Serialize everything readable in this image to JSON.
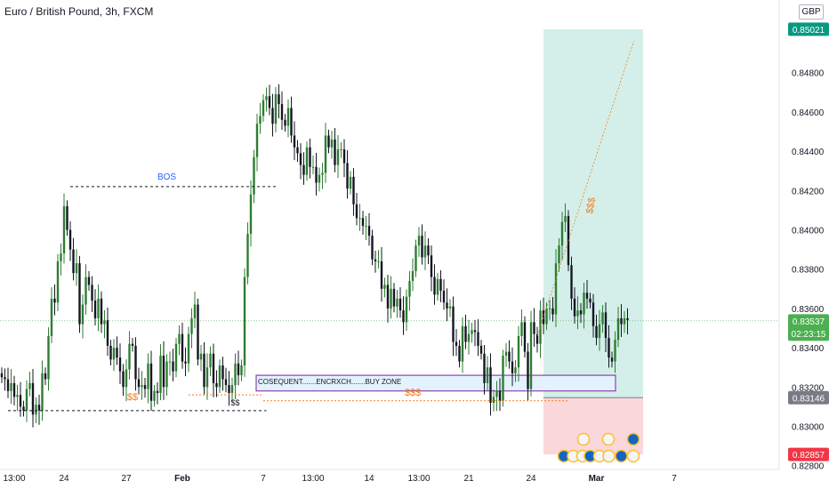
{
  "header": {
    "title": "Euro / British Pound, 3h, FXCM",
    "currency": "GBP"
  },
  "colors": {
    "up": "#26a69a",
    "up_body": "#2e7d32",
    "down": "#131722",
    "target_zone": "#d4efe9",
    "stop_zone": "#f9d7da",
    "target_label": "#089981",
    "stop_label": "#f23645",
    "entry_label": "#787b86",
    "current_label": "#4caf50",
    "annotation_orange": "#f57f17",
    "annotation_blue": "#2962ff",
    "buy_zone_border": "#7b1fa2"
  },
  "chart_data": {
    "type": "candlestick",
    "instrument": "Euro / British Pound",
    "timeframe": "3h",
    "ylim": [
      0.8274,
      0.8512
    ],
    "y_ticks": [
      0.828,
      0.83,
      0.832,
      0.834,
      0.836,
      0.838,
      0.84,
      0.842,
      0.844,
      0.846,
      0.848
    ],
    "x_ticks": [
      {
        "label": "13:00",
        "i": 4
      },
      {
        "label": "24",
        "i": 20
      },
      {
        "label": "27",
        "i": 40
      },
      {
        "label": "Feb",
        "i": 58
      },
      {
        "label": "7",
        "i": 84
      },
      {
        "label": "13:00",
        "i": 100
      },
      {
        "label": "14",
        "i": 118
      },
      {
        "label": "13:00",
        "i": 134
      },
      {
        "label": "21",
        "i": 150
      },
      {
        "label": "24",
        "i": 170
      },
      {
        "label": "Mar",
        "i": 191
      },
      {
        "label": "7",
        "i": 216
      }
    ],
    "price_labels": {
      "target": "0.85021",
      "current": "0.83537",
      "countdown": "02:23:15",
      "entry": "0.83146",
      "stop": "0.82857"
    },
    "position": {
      "entry": 0.83146,
      "target": 0.85021,
      "stop": 0.82857,
      "start_i": 174,
      "end_i": 206
    },
    "annotations": {
      "bos": "BOS",
      "ss_left": "$$",
      "ss_mid": "$$",
      "sss_bottom": "$$$",
      "sss_right": "$$$",
      "buy_zone": "COSEQUENT.......ENCRXCH.......BUY ZONE"
    },
    "close_series": [
      0.8325,
      0.8324,
      0.8318,
      0.8322,
      0.8315,
      0.8316,
      0.831,
      0.8308,
      0.8319,
      0.8322,
      0.8306,
      0.8311,
      0.8308,
      0.8327,
      0.8324,
      0.8346,
      0.8365,
      0.8363,
      0.8384,
      0.8388,
      0.8412,
      0.84,
      0.839,
      0.8378,
      0.8383,
      0.8352,
      0.8362,
      0.8376,
      0.8372,
      0.8364,
      0.8355,
      0.8365,
      0.8352,
      0.8354,
      0.8341,
      0.8334,
      0.834,
      0.8335,
      0.8328,
      0.832,
      0.8329,
      0.8342,
      0.8341,
      0.8324,
      0.832,
      0.8321,
      0.8319,
      0.8332,
      0.8313,
      0.8318,
      0.8317,
      0.8336,
      0.832,
      0.8333,
      0.8333,
      0.8328,
      0.8342,
      0.8347,
      0.8333,
      0.8332,
      0.8347,
      0.8355,
      0.8362,
      0.8334,
      0.8337,
      0.832,
      0.833,
      0.8337,
      0.8322,
      0.832,
      0.8331,
      0.8324,
      0.8321,
      0.8317,
      0.8321,
      0.8332,
      0.8326,
      0.8331,
      0.8376,
      0.8398,
      0.8418,
      0.8437,
      0.8454,
      0.8458,
      0.8466,
      0.8468,
      0.8462,
      0.8454,
      0.8469,
      0.8464,
      0.8456,
      0.8453,
      0.8462,
      0.8448,
      0.8442,
      0.8439,
      0.8433,
      0.8428,
      0.8442,
      0.8432,
      0.8432,
      0.8424,
      0.8428,
      0.8429,
      0.8448,
      0.8442,
      0.8446,
      0.8433,
      0.8441,
      0.8441,
      0.8434,
      0.8421,
      0.8427,
      0.8413,
      0.8406,
      0.8406,
      0.8402,
      0.8402,
      0.8397,
      0.8385,
      0.8384,
      0.8384,
      0.837,
      0.8372,
      0.836,
      0.837,
      0.8361,
      0.8365,
      0.8359,
      0.8353,
      0.8366,
      0.8374,
      0.8379,
      0.8392,
      0.8397,
      0.8386,
      0.8392,
      0.8387,
      0.8376,
      0.8367,
      0.8375,
      0.8369,
      0.8363,
      0.836,
      0.8361,
      0.8343,
      0.8341,
      0.8333,
      0.8351,
      0.8343,
      0.8347,
      0.8349,
      0.8348,
      0.8341,
      0.8337,
      0.8322,
      0.833,
      0.8312,
      0.8315,
      0.8318,
      0.8313,
      0.8336,
      0.8338,
      0.8333,
      0.8327,
      0.833,
      0.8346,
      0.8353,
      0.8338,
      0.8319,
      0.8353,
      0.8347,
      0.8342,
      0.8359,
      0.8352,
      0.836,
      0.836,
      0.8357,
      0.8383,
      0.8392,
      0.8404,
      0.8407,
      0.8382,
      0.8365,
      0.8356,
      0.8359,
      0.8357,
      0.8368,
      0.8365,
      0.8363,
      0.8351,
      0.8345,
      0.8352,
      0.8358,
      0.8345,
      0.8335,
      0.8333,
      0.8344,
      0.8355,
      0.8352,
      0.8355,
      0.8354
    ],
    "volatility_hint": "wicks approx ±0.0006"
  }
}
